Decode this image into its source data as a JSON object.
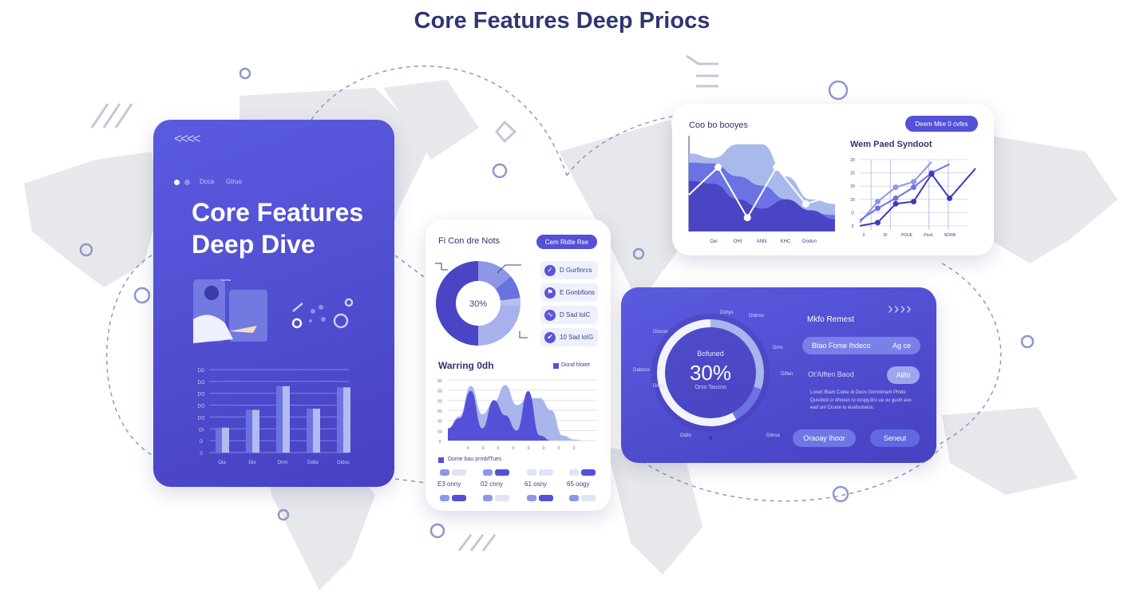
{
  "page_title": "Core Features Deep Priocs",
  "colors": {
    "primary": "#5550d8",
    "dark": "#3f3ab8",
    "light": "#a8b6ea",
    "mid": "#7b82e0",
    "map": "#e5e7eb",
    "title": "#2f3672"
  },
  "left_card": {
    "nav_labels": [
      "Dcca",
      "Gtruo"
    ],
    "headline_1": "Core Features",
    "headline_2": "Deep Dive",
    "chevrons": "<<<<",
    "illustration_caption": "Nurtna",
    "chart": {
      "x_labels": [
        "Oia",
        "Gio",
        "Oirm",
        "Ddite",
        "Gidos"
      ],
      "y_labels": [
        "0",
        "D",
        "Ol",
        "DO",
        "DO",
        "DO",
        "DO",
        "DD"
      ]
    }
  },
  "middle_card": {
    "title": "Fi Con dre Nots",
    "button": "Cem Ridte Rse",
    "donut_center": "30%",
    "list": [
      {
        "icon": "check-badge-icon",
        "glyph": "✓",
        "label": "D Gurfinrcs"
      },
      {
        "icon": "person-pointer-icon",
        "glyph": "⚑",
        "label": "E Gonbfions"
      },
      {
        "icon": "network-icon",
        "glyph": "∿",
        "label": "D Sad lolC"
      },
      {
        "icon": "checkmark-icon",
        "glyph": "✔",
        "label": "10 Sad loIG"
      }
    ],
    "area_title": "Warring 0dh",
    "area_legend": "Dond hlotet",
    "area_x_labels": [
      "0",
      "0",
      "0",
      "0",
      "0",
      "0",
      "0",
      "0"
    ],
    "area_y_labels": [
      "0",
      "04",
      "00",
      "00",
      "00",
      "00",
      "00"
    ],
    "footer_legend": "Dome bau prmbfTues",
    "grid_labels": [
      "E3 onny",
      "02 cnny",
      "61 osny",
      "65 oogy"
    ]
  },
  "top_right_card": {
    "title": "Coo bo booyes",
    "button": "Deem Mke 0 cvfes",
    "area_x_labels": [
      "Oei",
      "OHI",
      "ANN",
      "KHC",
      "Dodon"
    ],
    "line_title": "Wem Paed Syndoot",
    "line_x_labels": [
      "0",
      "DI",
      "PDUE",
      "Pesh",
      "NDNR"
    ],
    "line_y_labels": [
      "0",
      "D",
      "20",
      "20",
      "20",
      "20"
    ]
  },
  "bottom_right_card": {
    "chevrons": "››››",
    "ring_label": "Bofuned",
    "ring_value": "30%",
    "ring_sublabel": "Orso Tausno",
    "callouts": [
      "Dshys",
      "Didnso",
      "Dmo",
      "Diflen",
      "Dilnsa",
      "Dtdin",
      "Dneo",
      "Dabsoo",
      "Dlusso"
    ],
    "heading": "Mkfo Remest",
    "field_label": "Btao Fome Ihdeco",
    "field_value": "Ag ce",
    "option_label": "Ot'Alften Baod",
    "option_button": "Alifo",
    "paragraph": "Lorert Btam Ciobe di Doos Gonrotnam Phtdo Qusotod cr dhroun ro ocspy.tiro ue ou guoh avo ead uni Ccuoe lo eualsutvess.",
    "button_primary": "Oraoay Ihoor",
    "button_secondary": "Seneut"
  },
  "chart_data": [
    {
      "type": "bar",
      "chart": "left-card-bars",
      "categories": [
        "Oia",
        "Gio",
        "Oirm",
        "Ddite",
        "Gidos"
      ],
      "series": [
        {
          "values": [
            2.1,
            3.6,
            5.6,
            3.7,
            5.5
          ]
        },
        {
          "values": [
            2.1,
            3.6,
            5.6,
            3.7,
            5.5
          ]
        }
      ],
      "ylim": [
        0,
        7
      ],
      "grid": true
    },
    {
      "type": "pie",
      "chart": "middle-donut",
      "values": [
        50,
        14,
        3,
        9,
        24
      ],
      "center_label": "30%"
    },
    {
      "type": "area",
      "chart": "middle-area",
      "x": [
        0,
        1,
        2,
        3,
        4,
        5,
        6,
        7,
        8,
        9,
        10,
        11,
        12,
        13
      ],
      "series": [
        {
          "values": [
            1.2,
            2.4,
            5.4,
            2.6,
            3.8,
            5.5,
            3.5,
            4.2,
            4.2,
            3,
            0.5,
            0.1,
            0,
            0
          ]
        },
        {
          "values": [
            1.2,
            2.2,
            4.9,
            1.2,
            4.0,
            2.5,
            1.0,
            4.9,
            0.5,
            0,
            0,
            0,
            0,
            0
          ]
        }
      ],
      "ylim": [
        0,
        6
      ]
    },
    {
      "type": "area",
      "chart": "top-right-area",
      "x": [
        0,
        1,
        2,
        3,
        4,
        5,
        6
      ],
      "series": [
        {
          "values": [
            8.5,
            8,
            9.5,
            9.5,
            6,
            3.5,
            3
          ]
        },
        {
          "values": [
            7.5,
            7.4,
            6,
            5,
            3.5,
            2,
            1.8
          ]
        },
        {
          "values": [
            5.5,
            5.2,
            3.5,
            2.5,
            3.5,
            2.3,
            1.3
          ]
        }
      ],
      "line": [
        4,
        7,
        1.5,
        7,
        3,
        4
      ],
      "ylim": [
        0,
        10
      ]
    },
    {
      "type": "line",
      "chart": "top-right-lines",
      "x": [
        0,
        1,
        2,
        3,
        4,
        5,
        6
      ],
      "series": [
        {
          "values": [
            0.3,
            2.2,
            3.5,
            4,
            5.8,
            null,
            null
          ]
        },
        {
          "values": [
            0.5,
            1.6,
            2.5,
            3.5,
            4.8,
            5.6,
            null
          ]
        },
        {
          "values": [
            0,
            0.3,
            2,
            2.2,
            4.7,
            2.5,
            5.2
          ]
        }
      ],
      "ylim": [
        0,
        6
      ]
    },
    {
      "type": "pie",
      "chart": "bottom-right-ring",
      "values": [
        30,
        12,
        28,
        30
      ],
      "center_label": "30%"
    }
  ]
}
